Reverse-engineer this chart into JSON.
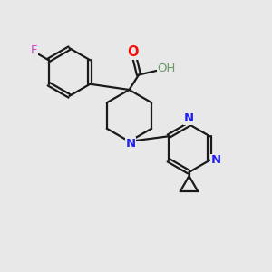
{
  "background_color": "#e8e8e8",
  "bond_color": "#1a1a1a",
  "N_color": "#2222ee",
  "O_color": "#ee1111",
  "F_color": "#cc44cc",
  "H_color": "#6a9a6a",
  "line_width": 1.6,
  "figsize": [
    3.0,
    3.0
  ],
  "dpi": 100,
  "xlim": [
    0,
    10
  ],
  "ylim": [
    0,
    10
  ]
}
